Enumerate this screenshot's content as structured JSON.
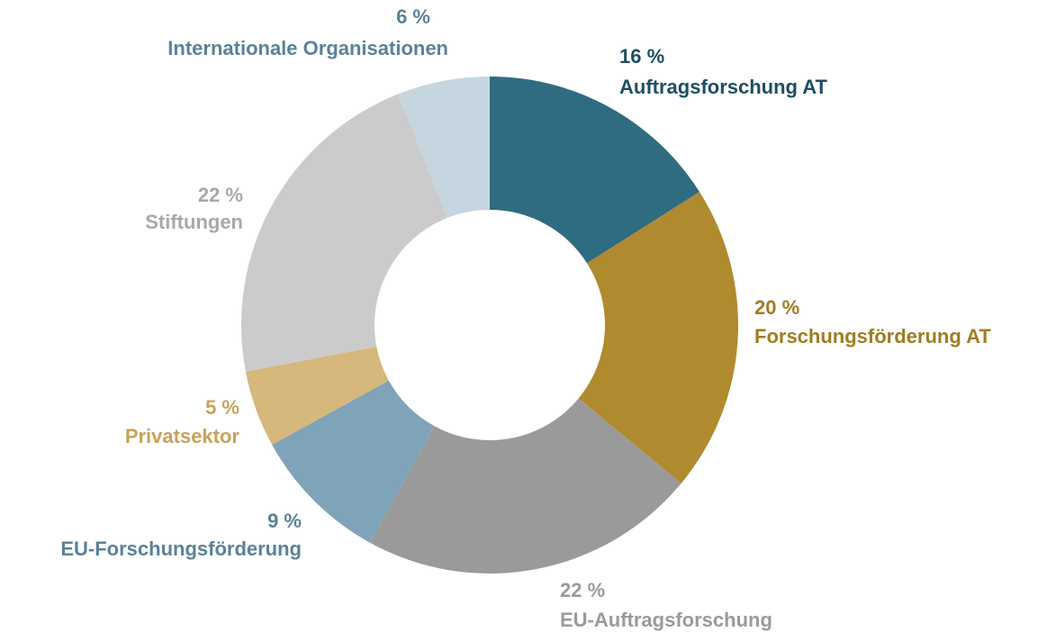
{
  "chart_data": {
    "type": "donut",
    "categories": [
      "Auftragsforschung AT",
      "Forschungsförderung AT",
      "EU-Auftragsforschung",
      "EU-Forschungsförderung",
      "Privatsektor",
      "Stiftungen",
      "Internationale Organisationen"
    ],
    "values": [
      16,
      20,
      22,
      9,
      5,
      22,
      6
    ],
    "value_labels": [
      "16 %",
      "20 %",
      "22 %",
      "9 %",
      "5 %",
      "22 %",
      "6 %"
    ],
    "colors": [
      "#2f6b81",
      "#b08a2e",
      "#9a9a9a",
      "#7fa3b8",
      "#d6b77c",
      "#cbcbcb",
      "#c5d6e0"
    ],
    "label_colors": [
      "#1f4e63",
      "#a07c22",
      "#9a9a9a",
      "#5a8299",
      "#c9a25a",
      "#a8a8a8",
      "#5a8299"
    ]
  }
}
